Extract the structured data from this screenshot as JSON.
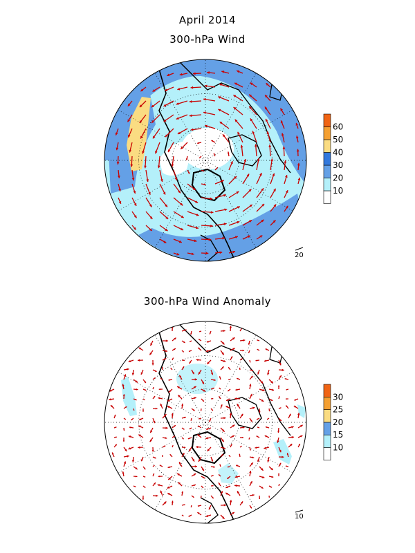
{
  "title_main": "April 2014",
  "panel1": {
    "title": "300-hPa Wind",
    "ref_vector_label": "20",
    "colorbar": {
      "labels": [
        "10",
        "20",
        "30",
        "40",
        "50",
        "60"
      ],
      "colors": [
        "#ffffff",
        "#b4f0fa",
        "#64a0e6",
        "#3278dc",
        "#fadc82",
        "#f5a032",
        "#f06414"
      ]
    }
  },
  "panel2": {
    "title": "300-hPa Wind Anomaly",
    "ref_vector_label": "10",
    "colorbar": {
      "labels": [
        "10",
        "15",
        "20",
        "25",
        "30"
      ],
      "colors": [
        "#ffffff",
        "#b4f0fa",
        "#64a0e6",
        "#fadc82",
        "#f5a032",
        "#f06414"
      ]
    }
  },
  "colors": {
    "vector": "#c80000",
    "land": "#000000",
    "grid": "#000000"
  }
}
